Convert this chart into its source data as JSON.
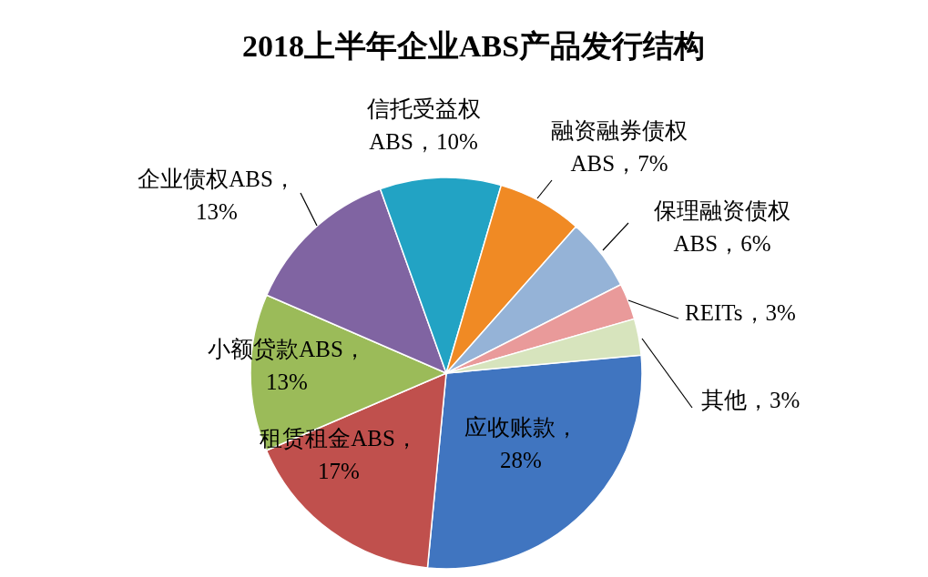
{
  "chart_data": {
    "type": "pie",
    "title": "2018上半年企业ABS产品发行结构",
    "categories": [
      "应收账款",
      "租赁租金ABS",
      "小额贷款ABS",
      "企业债权ABS",
      "信托受益权ABS",
      "融资融券债权ABS",
      "保理融资债权ABS",
      "REITs",
      "其他"
    ],
    "values": [
      28,
      17,
      13,
      13,
      10,
      7,
      6,
      3,
      3
    ],
    "colors": [
      "#4075c0",
      "#c0504d",
      "#9bbb59",
      "#8064a2",
      "#22a3c4",
      "#f08a24",
      "#95b3d7",
      "#e99a9a",
      "#d7e4bd"
    ],
    "value_labels": [
      "，28%",
      "，17%",
      "，13%",
      "，13%",
      "，10%",
      "，7%",
      "，6%",
      "，3%",
      "，3%"
    ]
  }
}
